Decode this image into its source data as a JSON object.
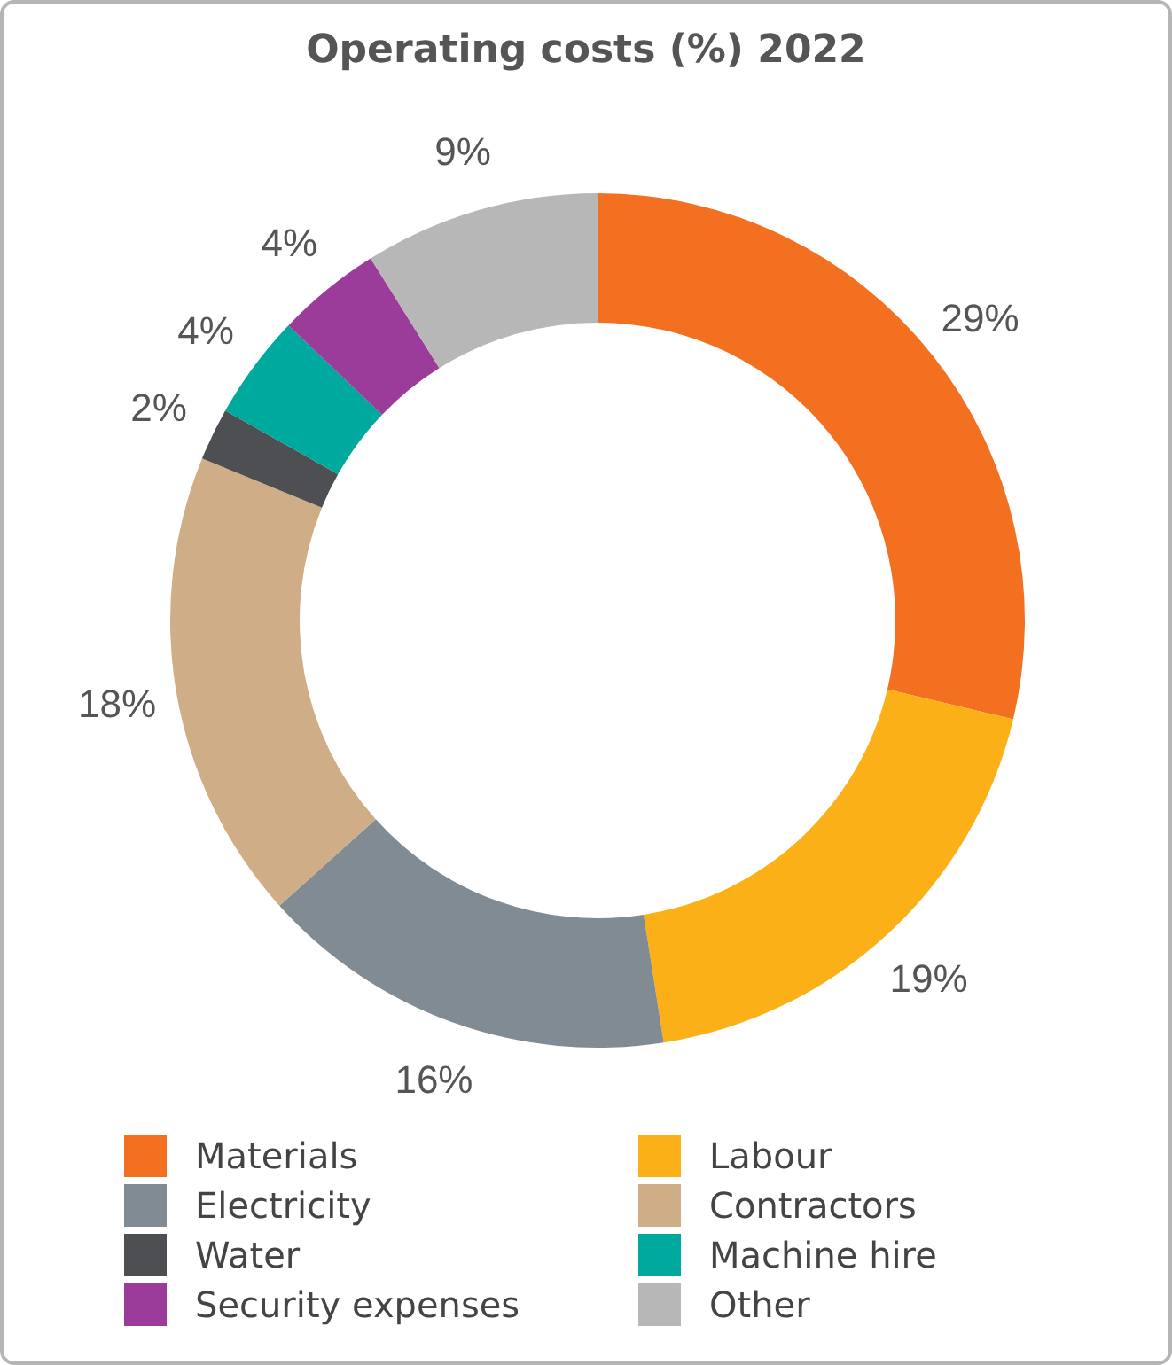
{
  "chart_data": {
    "type": "donut",
    "title": "Operating costs (%) 2022",
    "categories": [
      "Materials",
      "Labour",
      "Electricity",
      "Contractors",
      "Water",
      "Machine hire",
      "Security expenses",
      "Other"
    ],
    "values": [
      29,
      19,
      16,
      18,
      2,
      4,
      4,
      9
    ],
    "value_labels": [
      "29%",
      "19%",
      "16%",
      "18%",
      "2%",
      "4%",
      "4%",
      "9%"
    ],
    "colors": [
      "#f37021",
      "#fbb017",
      "#808b93",
      "#cfae87",
      "#4d4f53",
      "#00a99d",
      "#9b3c9b",
      "#b7b7b7"
    ],
    "legend": "bottom"
  }
}
